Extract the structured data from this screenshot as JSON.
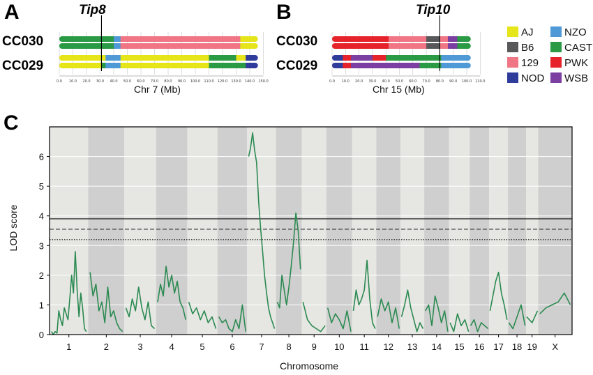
{
  "panels": {
    "a": {
      "letter": "A",
      "gene": "Tip8",
      "xlabel": "Chr 7 (Mb)",
      "ticks": [
        "0.0",
        "10.0",
        "20.0",
        "30.0",
        "40.0",
        "50.0",
        "60.0",
        "70.0",
        "80.0",
        "90.0",
        "100.0",
        "110.0",
        "120.0",
        "130.0",
        "140.0",
        "150.0"
      ]
    },
    "b": {
      "letter": "B",
      "gene": "Tip10",
      "xlabel": "Chr 15 (Mb)",
      "ticks": [
        "0.0",
        "10.0",
        "20.0",
        "30.0",
        "40.0",
        "50.0",
        "60.0",
        "70.0",
        "80.0",
        "90.0",
        "100.0",
        "110.0"
      ]
    },
    "c": {
      "letter": "C"
    }
  },
  "strains": {
    "cc030": "CC030",
    "cc029": "CC029"
  },
  "founders": [
    {
      "name": "AJ",
      "color": "#e5e51a"
    },
    {
      "name": "B6",
      "color": "#58585a"
    },
    {
      "name": "129",
      "color": "#f07585"
    },
    {
      "name": "NOD",
      "color": "#2f3c9c"
    },
    {
      "name": "NZO",
      "color": "#4f9ad6"
    },
    {
      "name": "CAST",
      "color": "#2a9a45"
    },
    {
      "name": "PWK",
      "color": "#e6232a"
    },
    {
      "name": "WSB",
      "color": "#7a3fa0"
    }
  ],
  "haplotypes": {
    "chr7": {
      "cc030": [
        [
          {
            "f": "CAST",
            "s": 0,
            "e": 40
          },
          {
            "f": "NZO",
            "s": 40,
            "e": 45
          },
          {
            "f": "129",
            "s": 45,
            "e": 133
          },
          {
            "f": "AJ",
            "s": 133,
            "e": 146
          }
        ],
        [
          {
            "f": "CAST",
            "s": 0,
            "e": 40
          },
          {
            "f": "NZO",
            "s": 40,
            "e": 45
          },
          {
            "f": "129",
            "s": 45,
            "e": 133
          },
          {
            "f": "AJ",
            "s": 133,
            "e": 146
          }
        ]
      ],
      "cc029": [
        [
          {
            "f": "AJ",
            "s": 0,
            "e": 34
          },
          {
            "f": "NZO",
            "s": 34,
            "e": 45
          },
          {
            "f": "AJ",
            "s": 45,
            "e": 110
          },
          {
            "f": "CAST",
            "s": 110,
            "e": 130
          },
          {
            "f": "AJ",
            "s": 130,
            "e": 137
          },
          {
            "f": "NOD",
            "s": 137,
            "e": 146
          }
        ],
        [
          {
            "f": "AJ",
            "s": 0,
            "e": 31
          },
          {
            "f": "CAST",
            "s": 31,
            "e": 34
          },
          {
            "f": "NZO",
            "s": 34,
            "e": 45
          },
          {
            "f": "AJ",
            "s": 45,
            "e": 110
          },
          {
            "f": "CAST",
            "s": 110,
            "e": 137
          },
          {
            "f": "NOD",
            "s": 137,
            "e": 146
          }
        ]
      ]
    },
    "chr15": {
      "cc030": [
        [
          {
            "f": "PWK",
            "s": 0,
            "e": 42
          },
          {
            "f": "129",
            "s": 42,
            "e": 70
          },
          {
            "f": "B6",
            "s": 70,
            "e": 80
          },
          {
            "f": "129",
            "s": 80,
            "e": 86
          },
          {
            "f": "WSB",
            "s": 86,
            "e": 93
          },
          {
            "f": "CAST",
            "s": 93,
            "e": 103
          }
        ],
        [
          {
            "f": "PWK",
            "s": 0,
            "e": 42
          },
          {
            "f": "129",
            "s": 42,
            "e": 70
          },
          {
            "f": "B6",
            "s": 70,
            "e": 80
          },
          {
            "f": "129",
            "s": 80,
            "e": 86
          },
          {
            "f": "WSB",
            "s": 86,
            "e": 93
          },
          {
            "f": "CAST",
            "s": 93,
            "e": 103
          }
        ]
      ],
      "cc029": [
        [
          {
            "f": "NOD",
            "s": 0,
            "e": 8
          },
          {
            "f": "PWK",
            "s": 8,
            "e": 14
          },
          {
            "f": "WSB",
            "s": 14,
            "e": 30
          },
          {
            "f": "PWK",
            "s": 30,
            "e": 40
          },
          {
            "f": "CAST",
            "s": 40,
            "e": 81
          },
          {
            "f": "NZO",
            "s": 81,
            "e": 103
          }
        ],
        [
          {
            "f": "NOD",
            "s": 0,
            "e": 8
          },
          {
            "f": "PWK",
            "s": 8,
            "e": 14
          },
          {
            "f": "WSB",
            "s": 14,
            "e": 65
          },
          {
            "f": "CAST",
            "s": 65,
            "e": 81
          },
          {
            "f": "NZO",
            "s": 81,
            "e": 103
          }
        ]
      ]
    }
  },
  "markers": {
    "tip8_mb": 31,
    "tip10_mb": 80
  },
  "chart_data": {
    "type": "line",
    "title": "",
    "xlabel": "Chromosome",
    "ylabel": "LOD score",
    "ylim": [
      0,
      7
    ],
    "yticks": [
      "0",
      "1",
      "2",
      "3",
      "4",
      "5",
      "6"
    ],
    "chromosomes": [
      "1",
      "2",
      "3",
      "4",
      "5",
      "6",
      "7",
      "8",
      "9",
      "10",
      "11",
      "12",
      "13",
      "14",
      "15",
      "16",
      "17",
      "18",
      "19",
      "X"
    ],
    "thresholds": [
      {
        "style": "solid",
        "value": 3.9
      },
      {
        "style": "dashed",
        "value": 3.55
      },
      {
        "style": "dotted",
        "value": 3.2
      }
    ],
    "series": [
      {
        "color": "#2a8a50",
        "profiles": [
          [
            0.1,
            0.0,
            0.1,
            0.05,
            0.8,
            0.5,
            0.3,
            0.9,
            0.7,
            0.5,
            1.2,
            2.0,
            1.4,
            2.8,
            1.5,
            0.6,
            1.4,
            0.9,
            0.2,
            0.1
          ],
          [
            2.1,
            1.3,
            1.7,
            0.8,
            1.1,
            0.4,
            1.6,
            0.6,
            0.8,
            0.4,
            0.2,
            0.1
          ],
          [
            0.9,
            0.6,
            1.2,
            0.8,
            1.6,
            0.9,
            0.5,
            1.1,
            0.3,
            0.2
          ],
          [
            1.1,
            1.7,
            1.3,
            2.3,
            1.6,
            2.0,
            1.4,
            1.8,
            1.1,
            0.9,
            0.5
          ],
          [
            1.1,
            0.7,
            0.9,
            0.5,
            0.8,
            0.4,
            0.6,
            0.2
          ],
          [
            0.6,
            0.4,
            0.5,
            0.2,
            0.1,
            0.5,
            0.2,
            1.0,
            0.1
          ],
          [
            6.0,
            6.3,
            6.8,
            6.2,
            5.8,
            4.5,
            3.6,
            2.8,
            2.0,
            1.4,
            0.9,
            0.6,
            0.4,
            0.2
          ],
          [
            1.1,
            0.9,
            2.0,
            1.5,
            1.0,
            1.6,
            2.3,
            3.1,
            4.1,
            3.5,
            2.2
          ],
          [
            1.1,
            0.5,
            0.3,
            0.2,
            0.1,
            0.3
          ],
          [
            0.9,
            0.4,
            0.7,
            0.5,
            0.2,
            0.8,
            0.1
          ],
          [
            0.8,
            1.5,
            1.0,
            1.2,
            1.5,
            2.5,
            1.2,
            0.4,
            0.2
          ],
          [
            0.6,
            1.2,
            0.8,
            1.1,
            0.4,
            0.9,
            0.2
          ],
          [
            0.6,
            1.0,
            1.5,
            0.9,
            0.5,
            0.1,
            0.4,
            0.2
          ],
          [
            0.8,
            1.0,
            0.3,
            1.3,
            0.9,
            0.4,
            0.8,
            0.1
          ],
          [
            0.4,
            0.1,
            0.7,
            0.3,
            0.5,
            0.1
          ],
          [
            0.3,
            0.5,
            0.1,
            0.4,
            0.3,
            0.2
          ],
          [
            0.8,
            1.3,
            1.8,
            2.1,
            1.4,
            1.0,
            0.5
          ],
          [
            0.4,
            0.2,
            0.6,
            1.0,
            0.3
          ],
          [
            0.6,
            0.4,
            0.8
          ],
          [
            0.7,
            0.9,
            1.0,
            1.1,
            1.4,
            1.0
          ]
        ]
      }
    ]
  }
}
